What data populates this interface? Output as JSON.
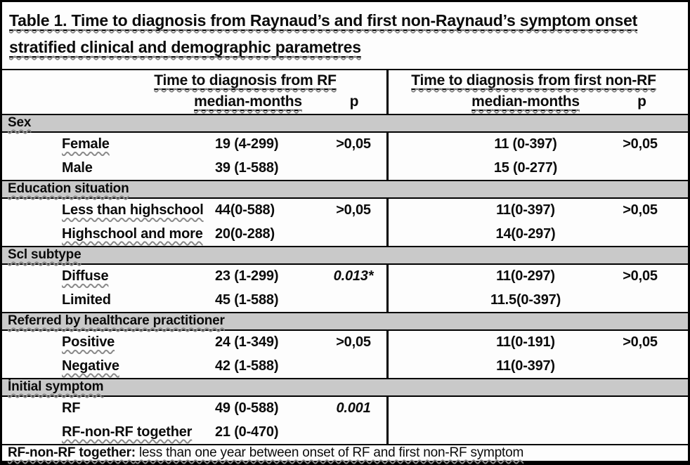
{
  "figure": {
    "title": "Table 1. Time to diagnosis from Raynaud’s and first non-Raynaud’s symptom onset stratified clinical and demographic parametres"
  },
  "header": {
    "left": {
      "title": "Time to diagnosis from RF",
      "median_label": "median-months",
      "p_label": "p"
    },
    "right": {
      "title": "Time to diagnosis from first non-RF",
      "median_label": "median-months",
      "p_label": "p"
    }
  },
  "sections": [
    {
      "name": "Sex",
      "rows": [
        {
          "label": "Female",
          "label_wavy": true,
          "left_median": "19 (4-299)",
          "left_p": ">0,05",
          "left_p_italic": false,
          "right_median": "11 (0-397)",
          "right_p": ">0,05"
        },
        {
          "label": "Male",
          "label_wavy": false,
          "left_median": "39 (1-588)",
          "left_p": "",
          "left_p_italic": false,
          "right_median": "15 (0-277)",
          "right_p": ""
        }
      ]
    },
    {
      "name": "Education situation",
      "rows": [
        {
          "label": "Less than highschool",
          "label_wavy": true,
          "left_median": "44(0-588)",
          "left_p": ">0,05",
          "left_p_italic": false,
          "right_median": "11(0-397)",
          "right_p": ">0,05"
        },
        {
          "label": "Highschool and more",
          "label_wavy": true,
          "left_median": "20(0-288)",
          "left_p": "",
          "left_p_italic": false,
          "right_median": "14(0-297)",
          "right_p": ""
        }
      ]
    },
    {
      "name": "Scl subtype",
      "rows": [
        {
          "label": "Diffuse",
          "label_wavy": true,
          "left_median": "23 (1-299)",
          "left_p": "0.013*",
          "left_p_italic": true,
          "right_median": "11(0-297)",
          "right_p": ">0,05"
        },
        {
          "label": "Limited",
          "label_wavy": false,
          "left_median": "45 (1-588)",
          "left_p": "",
          "left_p_italic": false,
          "right_median": "11.5(0-397)",
          "right_p": ""
        }
      ]
    },
    {
      "name": "Referred by healthcare practitioner",
      "rows": [
        {
          "label": "Positive",
          "label_wavy": true,
          "left_median": "24 (1-349)",
          "left_p": ">0,05",
          "left_p_italic": false,
          "right_median": "11(0-191)",
          "right_p": ">0,05"
        },
        {
          "label": "Negative",
          "label_wavy": true,
          "left_median": "42 (1-588)",
          "left_p": "",
          "left_p_italic": false,
          "right_median": "11(0-397)",
          "right_p": ""
        }
      ]
    },
    {
      "name": "İnitial symptom",
      "rows": [
        {
          "label": "RF",
          "label_wavy": false,
          "left_median": "49 (0-588)",
          "left_p": "0.001",
          "left_p_italic": true,
          "right_median": "",
          "right_p": ""
        },
        {
          "label": "RF-non-RF together",
          "label_wavy": true,
          "left_median": "21 (0-470)",
          "left_p": "",
          "left_p_italic": false,
          "right_median": "",
          "right_p": ""
        }
      ]
    }
  ],
  "footnote": {
    "term": "RF-non-RF together:",
    "definition": " less than one year between onset of RF and first non-RF symptom"
  },
  "colors": {
    "band_gray": "#c9c9c9",
    "text_black": "#0b0b0b",
    "border_black": "#000000"
  }
}
